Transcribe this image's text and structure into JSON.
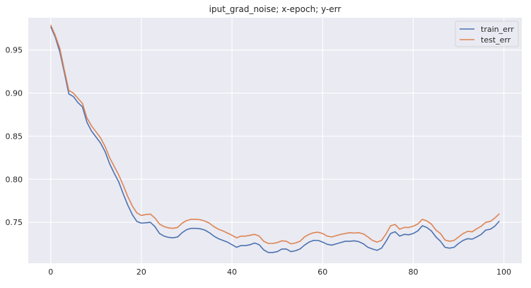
{
  "chart_data": {
    "type": "line",
    "title": "iput_grad_noise; x-epoch; y-err",
    "xlabel": "",
    "ylabel": "",
    "xlim": [
      -4.95,
      103.95
    ],
    "ylim": [
      0.7025,
      0.9875
    ],
    "xticks": [
      0,
      20,
      40,
      60,
      80,
      100
    ],
    "yticks": [
      0.75,
      0.8,
      0.85,
      0.9,
      0.95
    ],
    "ytick_labels": [
      "0.75",
      "0.80",
      "0.85",
      "0.90",
      "0.95"
    ],
    "grid": true,
    "legend_position": "top-right",
    "x": [
      0,
      1,
      2,
      3,
      4,
      5,
      6,
      7,
      8,
      9,
      10,
      11,
      12,
      13,
      14,
      15,
      16,
      17,
      18,
      19,
      20,
      21,
      22,
      23,
      24,
      25,
      26,
      27,
      28,
      29,
      30,
      31,
      32,
      33,
      34,
      35,
      36,
      37,
      38,
      39,
      40,
      41,
      42,
      43,
      44,
      45,
      46,
      47,
      48,
      49,
      50,
      51,
      52,
      53,
      54,
      55,
      56,
      57,
      58,
      59,
      60,
      61,
      62,
      63,
      64,
      65,
      66,
      67,
      68,
      69,
      70,
      71,
      72,
      73,
      74,
      75,
      76,
      77,
      78,
      79,
      80,
      81,
      82,
      83,
      84,
      85,
      86,
      87,
      88,
      89,
      90,
      91,
      92,
      93,
      94,
      95,
      96,
      97,
      98,
      99
    ],
    "series": [
      {
        "name": "train_err",
        "color": "#4c72b0",
        "values": [
          0.977,
          0.965,
          0.948,
          0.924,
          0.899,
          0.896,
          0.889,
          0.884,
          0.866,
          0.856,
          0.849,
          0.842,
          0.832,
          0.818,
          0.807,
          0.797,
          0.783,
          0.77,
          0.759,
          0.751,
          0.749,
          0.7495,
          0.75,
          0.745,
          0.737,
          0.734,
          0.7325,
          0.732,
          0.733,
          0.738,
          0.7415,
          0.743,
          0.743,
          0.7425,
          0.741,
          0.738,
          0.734,
          0.731,
          0.729,
          0.727,
          0.724,
          0.721,
          0.723,
          0.723,
          0.724,
          0.726,
          0.724,
          0.718,
          0.715,
          0.715,
          0.716,
          0.719,
          0.719,
          0.716,
          0.717,
          0.719,
          0.7235,
          0.727,
          0.729,
          0.729,
          0.727,
          0.7245,
          0.7235,
          0.725,
          0.7265,
          0.728,
          0.728,
          0.7285,
          0.7275,
          0.725,
          0.721,
          0.719,
          0.7175,
          0.72,
          0.728,
          0.737,
          0.739,
          0.734,
          0.736,
          0.7355,
          0.737,
          0.74,
          0.746,
          0.744,
          0.74,
          0.733,
          0.728,
          0.721,
          0.72,
          0.721,
          0.7255,
          0.729,
          0.731,
          0.7305,
          0.733,
          0.736,
          0.741,
          0.742,
          0.7455,
          0.7515
        ]
      },
      {
        "name": "test_err",
        "color": "#dd8452",
        "values": [
          0.979,
          0.967,
          0.952,
          0.927,
          0.903,
          0.9,
          0.894,
          0.888,
          0.871,
          0.862,
          0.855,
          0.848,
          0.838,
          0.825,
          0.815,
          0.805,
          0.793,
          0.78,
          0.769,
          0.761,
          0.758,
          0.759,
          0.7595,
          0.755,
          0.748,
          0.745,
          0.7435,
          0.743,
          0.744,
          0.749,
          0.752,
          0.7535,
          0.7535,
          0.753,
          0.7515,
          0.749,
          0.745,
          0.742,
          0.74,
          0.7375,
          0.735,
          0.732,
          0.734,
          0.734,
          0.735,
          0.736,
          0.734,
          0.728,
          0.7255,
          0.7255,
          0.7265,
          0.7285,
          0.728,
          0.725,
          0.726,
          0.728,
          0.733,
          0.736,
          0.738,
          0.7385,
          0.737,
          0.734,
          0.733,
          0.7345,
          0.736,
          0.737,
          0.738,
          0.7375,
          0.738,
          0.7365,
          0.733,
          0.729,
          0.727,
          0.729,
          0.7365,
          0.746,
          0.7475,
          0.742,
          0.744,
          0.744,
          0.7455,
          0.748,
          0.7535,
          0.7515,
          0.748,
          0.741,
          0.737,
          0.7295,
          0.728,
          0.729,
          0.733,
          0.737,
          0.7395,
          0.739,
          0.7425,
          0.7455,
          0.75,
          0.751,
          0.755,
          0.76
        ]
      }
    ]
  }
}
